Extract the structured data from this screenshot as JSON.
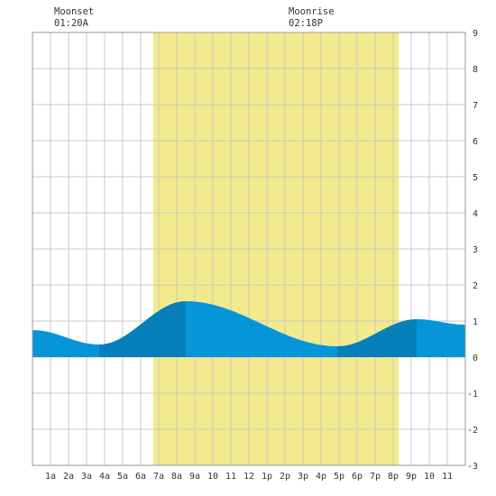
{
  "moon_events": [
    {
      "label": "Moonset",
      "time": "01:20A",
      "hour": 1.33
    },
    {
      "label": "Moonrise",
      "time": "02:18P",
      "hour": 14.3
    }
  ],
  "chart_data": {
    "type": "area",
    "title": "",
    "xlabel": "",
    "ylabel": "",
    "xlim": [
      0,
      24
    ],
    "ylim": [
      -3,
      9
    ],
    "grid": true,
    "x_tick_labels": [
      "1a",
      "2a",
      "3a",
      "4a",
      "5a",
      "6a",
      "7a",
      "8a",
      "9a",
      "10",
      "11",
      "12",
      "1p",
      "2p",
      "3p",
      "4p",
      "5p",
      "6p",
      "7p",
      "8p",
      "9p",
      "10",
      "11"
    ],
    "y_tick_labels": [
      "-3",
      "-2",
      "-1",
      "0",
      "1",
      "2",
      "3",
      "4",
      "5",
      "6",
      "7",
      "8",
      "9"
    ],
    "daylight_hours": [
      6.7,
      20.3
    ],
    "tide_extremes": [
      {
        "kind": "low",
        "hour": 3.7,
        "height": 0.35
      },
      {
        "kind": "high",
        "hour": 8.5,
        "height": 1.55
      },
      {
        "kind": "low",
        "hour": 16.9,
        "height": 0.3
      },
      {
        "kind": "high",
        "hour": 21.3,
        "height": 1.05
      }
    ],
    "series": [
      {
        "x": [
          0,
          3.7,
          8.5,
          16.9,
          21.3,
          24
        ],
        "y": [
          0.75,
          0.35,
          1.55,
          0.3,
          1.05,
          0.9
        ]
      }
    ],
    "colors": {
      "daylight": "#f2ea8c",
      "water": "#0795d9",
      "water_dark": "#0680bb",
      "grid": "#c8c8c8",
      "axis": "#999999"
    }
  }
}
